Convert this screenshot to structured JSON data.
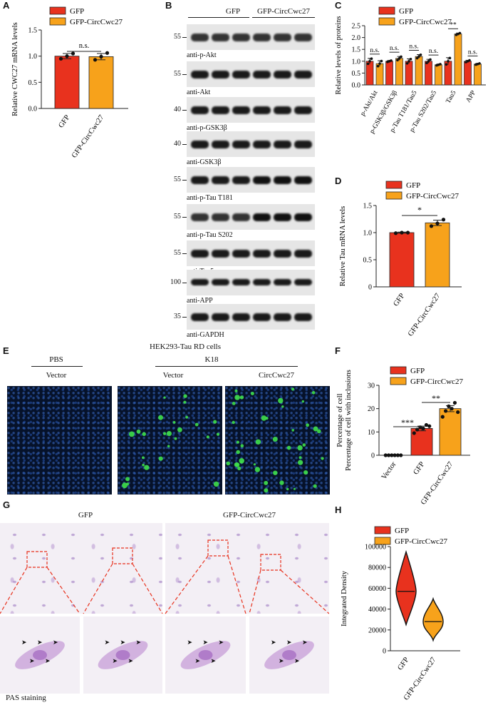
{
  "panels": {
    "A": {
      "label": "A",
      "legend": [
        "GFP",
        "GFP-CircCwc27"
      ],
      "colors": [
        "#e8321e",
        "#f7a21b"
      ],
      "sig": "n.s.",
      "chart_data": {
        "type": "bar",
        "categories": [
          "GFP",
          "GFP-CircCwc27"
        ],
        "values": [
          1.0,
          0.99
        ],
        "errors": [
          0.05,
          0.06
        ],
        "points": [
          [
            0.95,
            1.0,
            1.05
          ],
          [
            0.93,
            0.99,
            1.06
          ]
        ],
        "ylabel": "Relative CWC27 mRNA levels",
        "ylim": [
          0,
          1.5
        ],
        "yticks": [
          "0.0",
          "0.5",
          "1.0",
          "1.5"
        ]
      }
    },
    "B": {
      "label": "B",
      "group_labels": [
        "GFP",
        "GFP-CircCwc27"
      ],
      "blots": [
        {
          "mw": "55",
          "name": "anti-p-Akt"
        },
        {
          "mw": "55",
          "name": "anti-Akt"
        },
        {
          "mw": "40",
          "name": "anti-p-GSK3β"
        },
        {
          "mw": "40",
          "name": "anti-GSK3β"
        },
        {
          "mw": "55",
          "name": "anti-p-Tau T181"
        },
        {
          "mw": "55",
          "name": "anti-p-Tau S202"
        },
        {
          "mw": "55",
          "name": "anti-Tau5"
        },
        {
          "mw": "100",
          "name": "anti-APP"
        },
        {
          "mw": "35",
          "name": "anti-GAPDH"
        }
      ]
    },
    "C": {
      "label": "C",
      "legend": [
        "GFP",
        "GFP-CircCwc27"
      ],
      "sig": [
        "n.s.",
        "n.s.",
        "n.s.",
        "n.s.",
        "**",
        "n.s."
      ],
      "chart_data": {
        "type": "bar",
        "categories": [
          "p-Akt/Akt",
          "p-GSK3β/GSK3β",
          "p-Tau T181/Tau5",
          "p-Tau S202/Tau5",
          "Tau5",
          "APP"
        ],
        "series": [
          {
            "name": "GFP",
            "values": [
              1.0,
              1.0,
              1.0,
              1.0,
              1.0,
              1.0
            ],
            "errors": [
              0.12,
              0.03,
              0.1,
              0.08,
              0.15,
              0.04
            ]
          },
          {
            "name": "GFP-CircCwc27",
            "values": [
              0.9,
              1.12,
              1.2,
              0.85,
              2.15,
              0.88
            ],
            "errors": [
              0.12,
              0.08,
              0.08,
              0.03,
              0.04,
              0.03
            ]
          }
        ],
        "ylabel": "Relative levels of proteins",
        "ylim": [
          0,
          2.5
        ],
        "yticks": [
          "0.0",
          "0.5",
          "1.0",
          "1.5",
          "2.0",
          "2.5"
        ]
      }
    },
    "D": {
      "label": "D",
      "legend": [
        "GFP",
        "GFP-CircCwc27"
      ],
      "sig": "*",
      "chart_data": {
        "type": "bar",
        "categories": [
          "GFP",
          "GFP-CircCwc27"
        ],
        "values": [
          1.0,
          1.18
        ],
        "errors": [
          0.01,
          0.05
        ],
        "points": [
          [
            0.99,
            1.0,
            1.0
          ],
          [
            1.12,
            1.17,
            1.24
          ]
        ],
        "ylabel": "Relative Tau mRNA levels",
        "ylim": [
          0,
          1.5
        ],
        "yticks": [
          "0",
          "0.5",
          "1.0",
          "1.5"
        ]
      }
    },
    "E": {
      "label": "E",
      "title": "HEK293-Tau RD cells",
      "group1": "PBS",
      "group2": "K18",
      "sub": [
        "Vector",
        "Vector",
        "CircCwc27"
      ]
    },
    "F": {
      "label": "F",
      "legend": [
        "GFP",
        "GFP-CircCwc27"
      ],
      "sig": [
        "***",
        "**"
      ],
      "chart_data": {
        "type": "bar",
        "categories": [
          "Vector",
          "GFP",
          "GFP-CircCwc27"
        ],
        "values": [
          0,
          11.5,
          20
        ],
        "errors": [
          0,
          1.0,
          1.3
        ],
        "points": [
          [
            0,
            0,
            0,
            0,
            0,
            0
          ],
          [
            9.5,
            11,
            12,
            11.5,
            13,
            12.5
          ],
          [
            16.5,
            19,
            21,
            20,
            22.5,
            18.5
          ]
        ],
        "ylabel": "Percentage of cell with inclusions",
        "ylim": [
          0,
          30
        ],
        "yticks": [
          "0",
          "10",
          "20",
          "30"
        ]
      }
    },
    "G": {
      "label": "G",
      "titles": [
        "GFP",
        "GFP-CircCwc27"
      ],
      "caption": "PAS staining"
    },
    "H": {
      "label": "H",
      "legend": [
        "GFP",
        "GFP-CircCwc27"
      ],
      "chart_data": {
        "type": "violin",
        "categories": [
          "GFP",
          "GFP-CircCwc27"
        ],
        "range": [
          [
            25000,
            95000
          ],
          [
            10000,
            50000
          ]
        ],
        "median": [
          57000,
          28000
        ],
        "ylabel": "Integrated Density",
        "ylim": [
          0,
          100000
        ],
        "yticks": [
          "0",
          "20000",
          "40000",
          "60000",
          "80000",
          "100000"
        ]
      }
    }
  }
}
